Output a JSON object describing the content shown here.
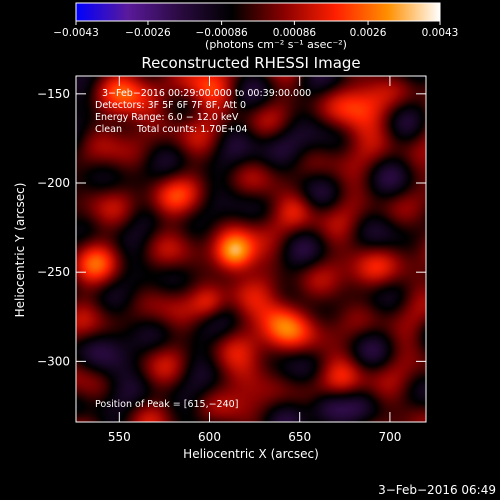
{
  "chart_data": {
    "type": "heatmap",
    "title": "Reconstructed RHESSI Image",
    "xlabel": "Heliocentric X (arcsec)",
    "ylabel": "Heliocentric Y (arcsec)",
    "xlim": [
      526,
      720
    ],
    "ylim": [
      -334,
      -140
    ],
    "x_ticks": [
      550,
      600,
      650,
      700
    ],
    "x_tick_labels": [
      "550",
      "600",
      "650",
      "700"
    ],
    "y_ticks": [
      -150,
      -200,
      -250,
      -300
    ],
    "y_tick_labels": [
      "−150",
      "−200",
      "−250",
      "−300"
    ],
    "colorbar": {
      "min": -0.0043,
      "max": 0.0043,
      "ticks": [
        -0.0043,
        -0.0026,
        -0.00086,
        0.00086,
        0.0026,
        0.0043
      ],
      "tick_labels": [
        "−0.0043",
        "−0.0026",
        "−0.00086",
        "0.00086",
        "0.0026",
        "0.0043"
      ],
      "unit_label": "(photons cm⁻² s⁻¹ asec⁻²)"
    },
    "colormap": [
      "#0000ff",
      "#5a1a9a",
      "#2a0a40",
      "#000000",
      "#8a0000",
      "#ff2000",
      "#ff9000",
      "#ffffff"
    ],
    "sources": [
      {
        "x": 614,
        "y": -240,
        "amp": 1.0,
        "sigma": 8
      },
      {
        "x": 640,
        "y": -278,
        "amp": 0.8,
        "sigma": 10
      },
      {
        "x": 600,
        "y": -268,
        "amp": 0.45,
        "sigma": 7
      },
      {
        "x": 575,
        "y": -210,
        "amp": 0.35,
        "sigma": 9
      },
      {
        "x": 560,
        "y": -155,
        "amp": 0.45,
        "sigma": 12
      },
      {
        "x": 600,
        "y": -150,
        "amp": 0.4,
        "sigma": 10
      },
      {
        "x": 685,
        "y": -160,
        "amp": 0.45,
        "sigma": 12
      },
      {
        "x": 690,
        "y": -250,
        "amp": 0.35,
        "sigma": 10
      },
      {
        "x": 675,
        "y": -310,
        "amp": 0.35,
        "sigma": 9
      },
      {
        "x": 620,
        "y": -310,
        "amp": 0.35,
        "sigma": 9
      },
      {
        "x": 535,
        "y": -245,
        "amp": 0.3,
        "sigma": 10
      },
      {
        "x": 648,
        "y": -215,
        "amp": 0.35,
        "sigma": 8
      },
      {
        "x": 665,
        "y": -325,
        "amp": -0.5,
        "sigma": 8
      },
      {
        "x": 545,
        "y": -300,
        "amp": -0.25,
        "sigma": 10
      },
      {
        "x": 640,
        "y": -180,
        "amp": -0.25,
        "sigma": 10
      }
    ],
    "annotations": [
      "3−Feb−2016 00:29:00.000 to 00:39:00.000",
      "Detectors: 3F 5F 6F 7F 8F, Att 0",
      "Energy Range: 6.0 − 12.0 keV",
      "Clean     Total counts: 1.70E+04"
    ],
    "peak_label": "Position of Peak = [615,−240]",
    "footer_timestamp": "3−Feb−2016 06:49"
  }
}
